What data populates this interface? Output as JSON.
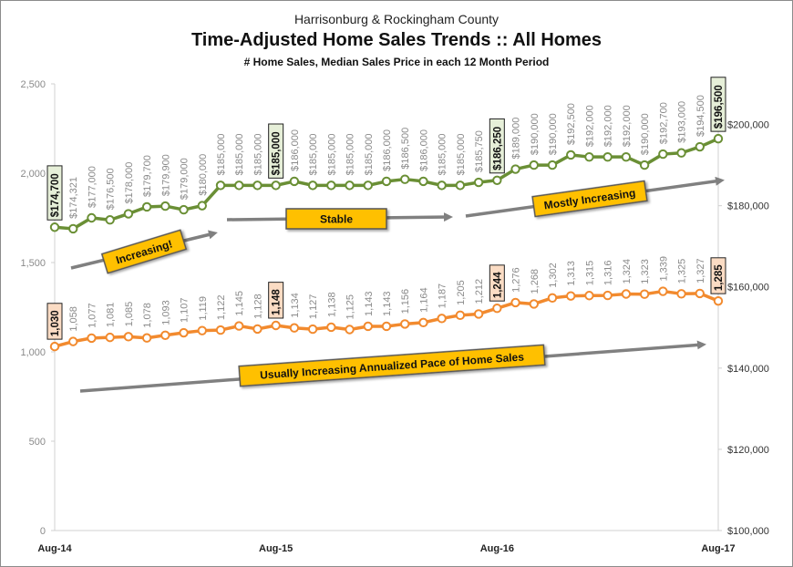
{
  "title": {
    "line1": "Harrisonburg & Rockingham County",
    "line2": "Time-Adjusted Home Sales Trends  ::  All Homes",
    "line3": "# Home Sales, Median Sales Price in each 12 Month Period"
  },
  "chart_data": {
    "type": "line",
    "x_tick_labels": [
      "Aug-14",
      "Aug-15",
      "Aug-16",
      "Aug-17"
    ],
    "y_left": {
      "ticks": [
        "0",
        "500",
        "1,000",
        "1,500",
        "2,000",
        "2,500"
      ],
      "range": [
        0,
        2500
      ]
    },
    "y_right": {
      "ticks": [
        "$100,000",
        "$120,000",
        "$140,000",
        "$160,000",
        "$180,000",
        "$200,000"
      ],
      "range": [
        100000,
        210000
      ]
    },
    "colors": {
      "price": "#6a8f35",
      "sales": "#f28a2e",
      "callout_price": "#e6efd8",
      "callout_sales": "#fbdcc4",
      "annotation": "#ffc000",
      "arrow": "#808080",
      "axis_text": "#8a8a8a"
    },
    "series": [
      {
        "axis": "right",
        "values": [
          174700,
          174321,
          177000,
          176500,
          178000,
          179700,
          179900,
          179000,
          180000,
          185000,
          185000,
          185000,
          185000,
          186000,
          185000,
          185000,
          185000,
          185000,
          186000,
          186500,
          186000,
          185000,
          185000,
          185750,
          186250,
          189000,
          190000,
          190000,
          192500,
          192000,
          192000,
          192000,
          190000,
          192700,
          193000,
          194500,
          196500
        ],
        "labels": [
          "$174,700",
          "$174,321",
          "$177,000",
          "$176,500",
          "$178,000",
          "$179,700",
          "$179,900",
          "$179,000",
          "$180,000",
          "$185,000",
          "$185,000",
          "$185,000",
          "$185,000",
          "$186,000",
          "$185,000",
          "$185,000",
          "$185,000",
          "$185,000",
          "$186,000",
          "$186,500",
          "$186,000",
          "$185,000",
          "$185,000",
          "$185,750",
          "$186,250",
          "$189,000",
          "$190,000",
          "$190,000",
          "$192,500",
          "$192,000",
          "$192,000",
          "$192,000",
          "$190,000",
          "$192,700",
          "$193,000",
          "$194,500",
          "$196,500"
        ],
        "highlight": [
          0,
          12,
          24,
          36
        ]
      },
      {
        "axis": "left",
        "values": [
          1030,
          1058,
          1077,
          1081,
          1085,
          1078,
          1093,
          1107,
          1119,
          1122,
          1145,
          1128,
          1148,
          1134,
          1127,
          1138,
          1125,
          1143,
          1143,
          1156,
          1164,
          1187,
          1205,
          1212,
          1244,
          1276,
          1268,
          1302,
          1313,
          1315,
          1316,
          1324,
          1323,
          1339,
          1325,
          1327,
          1285
        ],
        "labels": [
          "1,030",
          "1,058",
          "1,077",
          "1,081",
          "1,085",
          "1,078",
          "1,093",
          "1,107",
          "1,119",
          "1,122",
          "1,145",
          "1,128",
          "1,148",
          "1,134",
          "1,127",
          "1,138",
          "1,125",
          "1,143",
          "1,143",
          "1,156",
          "1,164",
          "1,187",
          "1,205",
          "1,212",
          "1,244",
          "1,276",
          "1,268",
          "1,302",
          "1,313",
          "1,315",
          "1,316",
          "1,324",
          "1,323",
          "1,339",
          "1,325",
          "1,327",
          "1,285"
        ],
        "highlight": [
          0,
          12,
          24,
          36
        ]
      }
    ],
    "annotations": [
      {
        "text": "Increasing!"
      },
      {
        "text": "Stable"
      },
      {
        "text": "Mostly Increasing"
      },
      {
        "text": "Usually Increasing Annualized Pace of Home Sales"
      }
    ]
  }
}
